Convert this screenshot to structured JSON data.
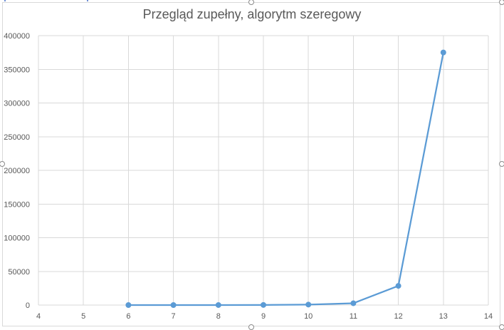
{
  "chart_data": {
    "type": "scatter",
    "title": "Przegląd zupełny, algorytm szeregowy",
    "xlabel": "",
    "ylabel": "",
    "xlim": [
      4,
      14
    ],
    "ylim": [
      0,
      400000
    ],
    "x_ticks": [
      4,
      5,
      6,
      7,
      8,
      9,
      10,
      11,
      12,
      13,
      14
    ],
    "y_ticks": [
      0,
      50000,
      100000,
      150000,
      200000,
      250000,
      300000,
      350000,
      400000
    ],
    "grid": true,
    "legend": "none",
    "series": [
      {
        "x": [
          6,
          7,
          8,
          9,
          10,
          11,
          12,
          13
        ],
        "y": [
          0,
          0,
          20,
          150,
          700,
          2700,
          28500,
          375000
        ],
        "color": "#5b9bd5",
        "style": "line-with-markers"
      }
    ]
  }
}
